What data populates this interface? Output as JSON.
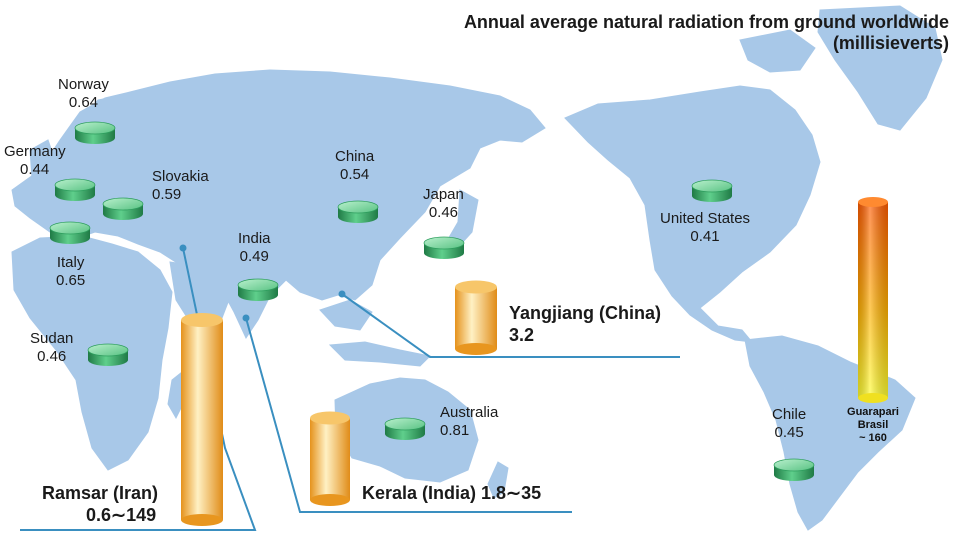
{
  "title": {
    "line1": "Annual average natural radiation from ground worldwide",
    "line2": "(millisieverts)"
  },
  "countries": [
    {
      "id": "norway",
      "name": "Norway",
      "value": "0.64"
    },
    {
      "id": "germany",
      "name": "Germany",
      "value": "0.44"
    },
    {
      "id": "slovakia",
      "name": "Slovakia",
      "value": "0.59"
    },
    {
      "id": "italy",
      "name": "Italy",
      "value": "0.65"
    },
    {
      "id": "sudan",
      "name": "Sudan",
      "value": "0.46"
    },
    {
      "id": "india",
      "name": "India",
      "value": "0.49"
    },
    {
      "id": "china",
      "name": "China",
      "value": "0.54"
    },
    {
      "id": "japan",
      "name": "Japan",
      "value": "0.46"
    },
    {
      "id": "australia",
      "name": "Australia",
      "value": "0.81"
    },
    {
      "id": "united-states",
      "name": "United States",
      "value": "0.41"
    },
    {
      "id": "chile",
      "name": "Chile",
      "value": "0.45"
    }
  ],
  "hotspots": {
    "ramsar": {
      "name": "Ramsar (Iran)",
      "range": "0.6∼149"
    },
    "kerala": {
      "label": "Kerala (India) 1.8∼35"
    },
    "yangjiang": {
      "name": "Yangjiang (China)",
      "value": "3.2"
    },
    "guarapari": {
      "line1": "Guarapari",
      "line2": "Brasil",
      "line3": "~ 160"
    }
  },
  "colors": {
    "land": "#a8c8e8",
    "pointer": "#3a8fc0",
    "disc_green": "#2e9e5e",
    "cylinder_orange": "#f2b04a",
    "cylinder_red_yellow": "#ff5a00"
  }
}
